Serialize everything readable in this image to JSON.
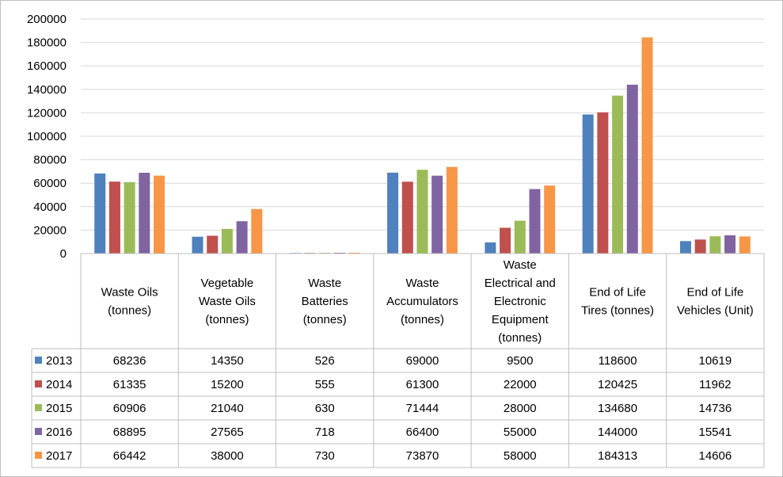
{
  "chart_data": {
    "type": "bar",
    "title": "",
    "xlabel": "",
    "ylabel": "",
    "ylim": [
      0,
      200000
    ],
    "yticks": [
      0,
      20000,
      40000,
      60000,
      80000,
      100000,
      120000,
      140000,
      160000,
      180000,
      200000
    ],
    "grid": true,
    "legend_placement": "data-table-left",
    "categories": [
      [
        "Waste Oils",
        "(tonnes)"
      ],
      [
        "Vegetable",
        "Waste Oils",
        "(tonnes)"
      ],
      [
        "Waste",
        "Batteries",
        "(tonnes)"
      ],
      [
        "Waste",
        "Accumulators",
        "(tonnes)"
      ],
      [
        "Waste",
        "Electrical and",
        "Electronic",
        "Equipment",
        "(tonnes)"
      ],
      [
        "End of Life",
        "Tires (tonnes)"
      ],
      [
        "End of Life",
        "Vehicles (Unit)"
      ]
    ],
    "series": [
      {
        "name": "2013",
        "color": "#4f81bd",
        "values": [
          68236,
          14350,
          526,
          69000,
          9500,
          118600,
          10619
        ]
      },
      {
        "name": "2014",
        "color": "#c0504d",
        "values": [
          61335,
          15200,
          555,
          61300,
          22000,
          120425,
          11962
        ]
      },
      {
        "name": "2015",
        "color": "#9bbb59",
        "values": [
          60906,
          21040,
          630,
          71444,
          28000,
          134680,
          14736
        ]
      },
      {
        "name": "2016",
        "color": "#8064a2",
        "values": [
          68895,
          27565,
          718,
          66400,
          55000,
          144000,
          15541
        ]
      },
      {
        "name": "2017",
        "color": "#f79646",
        "values": [
          66442,
          38000,
          730,
          73870,
          58000,
          184313,
          14606
        ]
      }
    ],
    "gridline_color": "#d9d9d9",
    "border_color": "#bfbfbf"
  }
}
